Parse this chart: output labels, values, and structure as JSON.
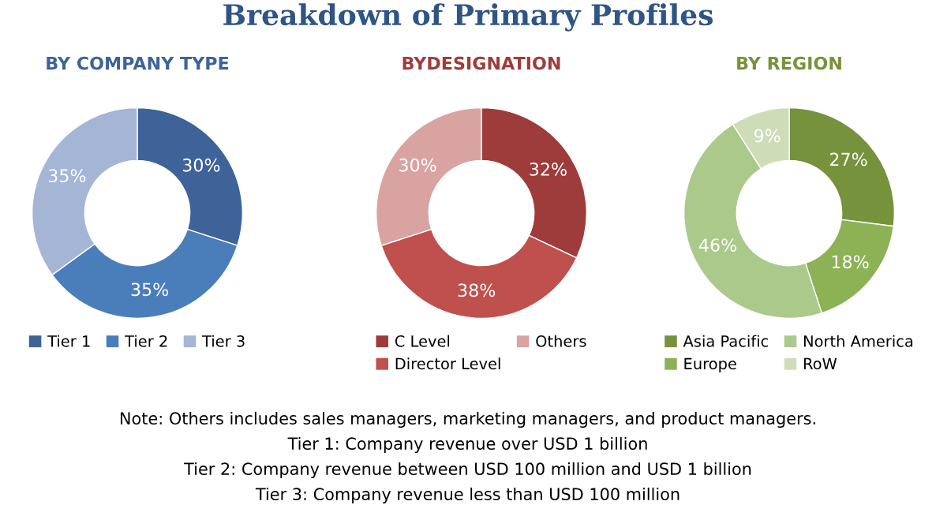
{
  "chart_data": [
    {
      "type": "donut",
      "title": "BY COMPANY TYPE",
      "categories": [
        "Tier 1",
        "Tier 2",
        "Tier 3"
      ],
      "values": [
        30,
        35,
        35
      ],
      "value_labels": [
        "30%",
        "35%",
        "35%"
      ],
      "colors": [
        "#3d6399",
        "#4a7ebb",
        "#a5b5d6"
      ],
      "legend": "bottom",
      "annotations": [
        "Breakdown of Primary Profiles"
      ]
    },
    {
      "type": "donut",
      "title": "BYDESIGNATION",
      "categories": [
        "C Level",
        "Director Level",
        "Others"
      ],
      "values": [
        32,
        38,
        30
      ],
      "value_labels": [
        "32%",
        "38%",
        "30%"
      ],
      "colors": [
        "#9e3c3b",
        "#c0504d",
        "#d9a3a2"
      ],
      "legend": "bottom"
    },
    {
      "type": "donut",
      "title": "BY REGION",
      "categories": [
        "Asia Pacific",
        "Europe",
        "North America",
        "RoW"
      ],
      "values": [
        27,
        18,
        46,
        9
      ],
      "value_labels": [
        "27%",
        "18%",
        "46%",
        "9%"
      ],
      "colors": [
        "#76923c",
        "#8db255",
        "#abc98a",
        "#cfdcb8"
      ],
      "legend": "bottom",
      "annotations": [
        "Note: Others includes sales managers, marketing managers, and product managers.",
        "Tier 1: Company revenue over USD 1 billion",
        "Tier 2: Company revenue between USD 100 million and USD 1 billion",
        "Tier 3: Company revenue less than USD 100 million"
      ]
    }
  ]
}
